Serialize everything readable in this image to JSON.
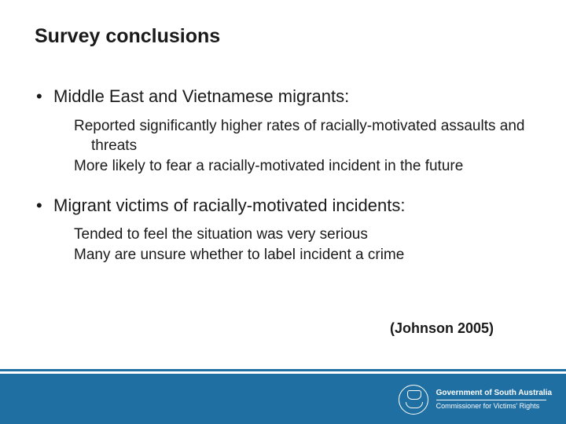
{
  "title": "Survey conclusions",
  "bullets": [
    {
      "main": "Middle East and Vietnamese migrants:",
      "subs": [
        "Reported significantly higher rates of racially-motivated assaults and threats",
        "More likely to fear a racially-motivated incident in the future"
      ]
    },
    {
      "main": "Migrant victims of racially-motivated incidents:",
      "subs": [
        "Tended to feel the situation was very serious",
        "Many are unsure whether to label incident a crime"
      ]
    }
  ],
  "citation": "(Johnson 2005)",
  "footer": {
    "org_line1": "Government of South Australia",
    "org_line2": "Commissioner for Victims' Rights",
    "band_color": "#1f6fa3",
    "text_color": "#ffffff"
  },
  "styling": {
    "background_color": "#ffffff",
    "title_fontsize": 25,
    "title_fontweight": "bold",
    "bullet_main_fontsize": 22,
    "sub_fontsize": 19,
    "citation_fontsize": 18,
    "citation_fontweight": "bold",
    "text_color": "#1a1a1a",
    "font_family": "Arial"
  }
}
